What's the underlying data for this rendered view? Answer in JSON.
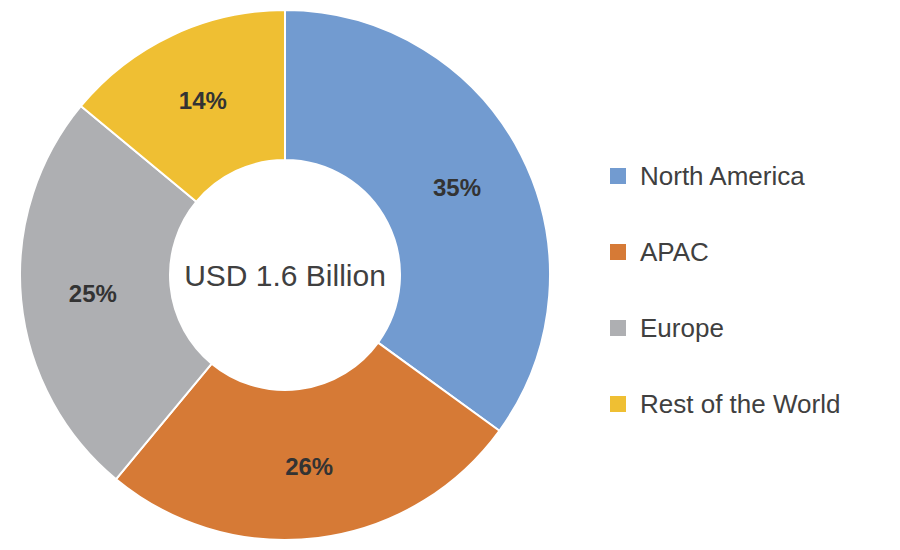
{
  "chart_data": {
    "type": "pie",
    "categories": [
      "North America",
      "APAC",
      "Europe",
      "Rest of the World"
    ],
    "values": [
      35,
      26,
      25,
      14
    ],
    "value_labels": [
      "35%",
      "26%",
      "25%",
      "14%"
    ],
    "colors": [
      "#729bd0",
      "#d67a36",
      "#aeafb2",
      "#efbf33"
    ],
    "annotations": [
      "USD 1.6 Billion"
    ],
    "data_labels": true,
    "legend": "right"
  }
}
